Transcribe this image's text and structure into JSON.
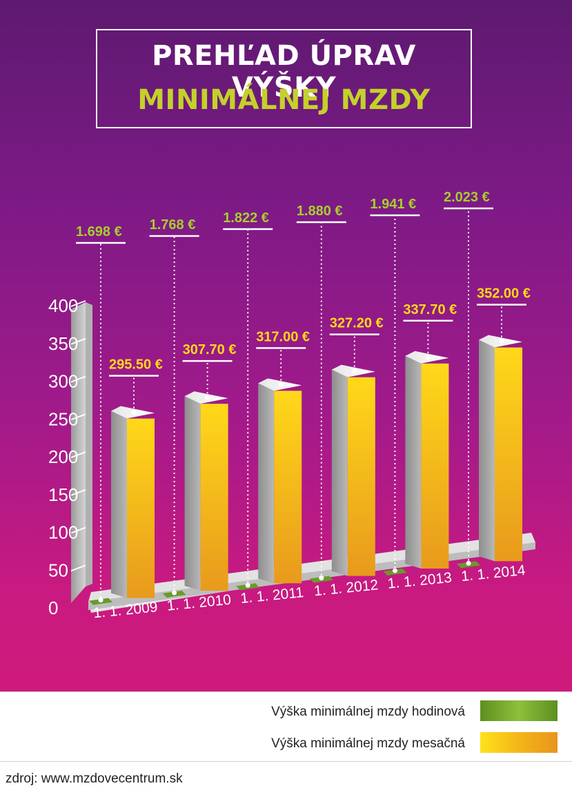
{
  "title": {
    "line1": "PREHĽAD ÚPRAV VÝŠKY",
    "line2": "MINIMÁLNEJ MZDY"
  },
  "colors": {
    "hourly": "#6a9a2a",
    "monthly": "#f7c215",
    "monthly_dark": "#e79a1c",
    "side": "#9e9e9e",
    "title_accent": "#c4d12a"
  },
  "legend": {
    "hourly_label": "Výška minimálnej mzdy hodinová",
    "monthly_label": "Výška minimálnej mzdy mesačná"
  },
  "source": "zdroj:  www.mzdovecentrum.sk",
  "chart_data": {
    "type": "bar",
    "categories": [
      "1. 1. 2009",
      "1. 1. 2010",
      "1. 1. 2011",
      "1. 1. 2012",
      "1. 1. 2013",
      "1. 1. 2014"
    ],
    "series": [
      {
        "name": "Výška minimálnej mzdy hodinová",
        "values": [
          1.698,
          1.768,
          1.822,
          1.88,
          1.941,
          2.023
        ],
        "labels": [
          "1.698",
          "1.768",
          "1.822",
          "1.880",
          "1.941",
          "2.023"
        ]
      },
      {
        "name": "Výška minimálnej mzdy mesačná",
        "values": [
          295.5,
          307.7,
          317.0,
          327.2,
          337.7,
          352.0
        ],
        "labels": [
          "295.50",
          "307.70",
          "317.00",
          "327.20",
          "337.70",
          "352.00"
        ]
      }
    ],
    "currency": "€",
    "yticks": [
      "0",
      "50",
      "100",
      "150",
      "200",
      "250",
      "300",
      "350",
      "400"
    ],
    "ylim": [
      0,
      400
    ],
    "legend_position": "bottom"
  }
}
